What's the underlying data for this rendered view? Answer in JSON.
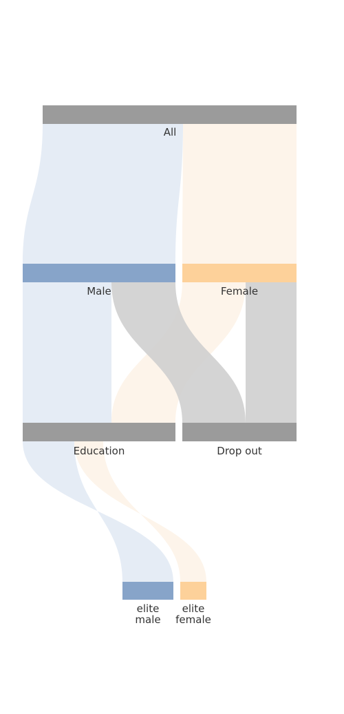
{
  "diagram": {
    "type": "sankey",
    "nodes": [
      {
        "id": "all",
        "label": "All",
        "color": "#9b9b9b"
      },
      {
        "id": "male",
        "label": "Male",
        "color": "#87a4c9"
      },
      {
        "id": "female",
        "label": "Female",
        "color": "#fdd19a"
      },
      {
        "id": "education",
        "label": "Education",
        "color": "#9b9b9b"
      },
      {
        "id": "dropout",
        "label": "Drop out",
        "color": "#9b9b9b"
      },
      {
        "id": "elite_male",
        "label": "elite\nmale",
        "color": "#87a4c9"
      },
      {
        "id": "elite_female",
        "label": "elite\nfemale",
        "color": "#fdd19a"
      }
    ],
    "links": [
      {
        "source": "all",
        "target": "male",
        "color": "#e5ecf5"
      },
      {
        "source": "all",
        "target": "female",
        "color": "#fdf4ea"
      },
      {
        "source": "male",
        "target": "education",
        "color": "#e5ecf5"
      },
      {
        "source": "male",
        "target": "dropout",
        "color": "#cfcfcf"
      },
      {
        "source": "female",
        "target": "education",
        "color": "#fdf4ea"
      },
      {
        "source": "female",
        "target": "dropout",
        "color": "#cfcfcf"
      },
      {
        "source": "education",
        "target": "elite_male",
        "color": "#e5ecf5"
      },
      {
        "source": "education",
        "target": "elite_female",
        "color": "#fdf4ea"
      }
    ]
  }
}
